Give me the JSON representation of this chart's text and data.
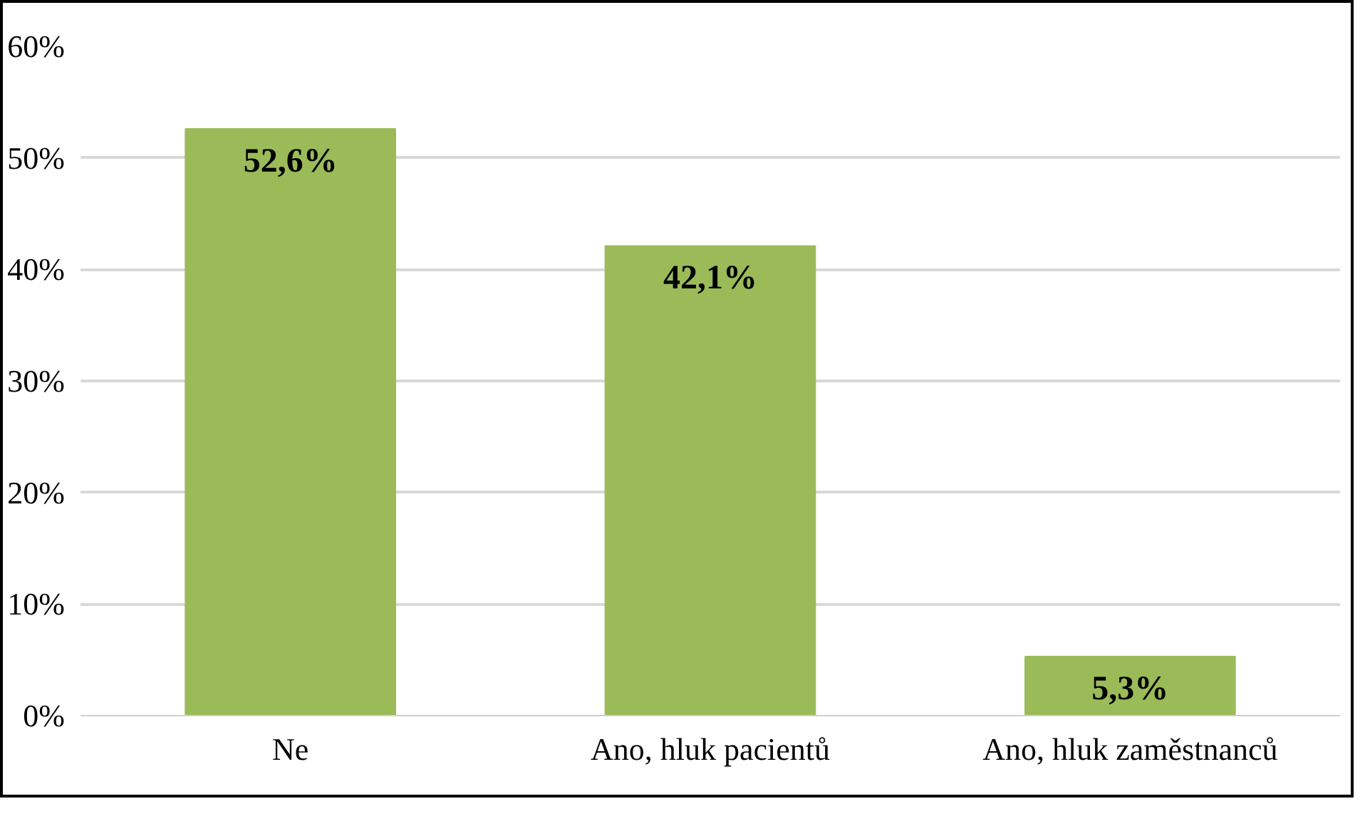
{
  "chart_data": {
    "type": "bar",
    "categories": [
      "Ne",
      "Ano, hluk pacientů",
      "Ano, hluk zaměstnanců"
    ],
    "values": [
      52.6,
      42.1,
      5.3
    ],
    "color": "#9bbb59",
    "value_labels": [
      "52,6%",
      "42,1%",
      "5,3%"
    ],
    "ylim": [
      0,
      60
    ],
    "yticks": [
      {
        "value": 0,
        "label": "0%"
      },
      {
        "value": 10,
        "label": "10%"
      },
      {
        "value": 20,
        "label": "20%"
      },
      {
        "value": 30,
        "label": "30%"
      },
      {
        "value": 40,
        "label": "40%"
      },
      {
        "value": 50,
        "label": "50%"
      },
      {
        "value": 60,
        "label": "60%"
      }
    ],
    "grid": "y"
  }
}
